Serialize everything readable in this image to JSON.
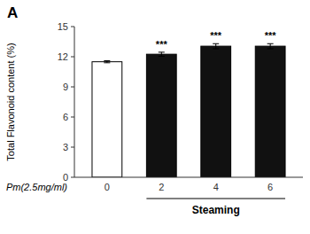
{
  "chart_data": {
    "type": "bar",
    "panel_label": "A",
    "ylabel": "Total Flavonoid content (%)",
    "xlabel": "Steaming",
    "xlabel_sub": "Pm(2.5mg/ml)",
    "categories": [
      "0",
      "2",
      "4",
      "6"
    ],
    "values": [
      11.5,
      12.25,
      13.05,
      13.05
    ],
    "errors": [
      0.1,
      0.2,
      0.25,
      0.25
    ],
    "colors": [
      "#ffffff",
      "#111111",
      "#111111",
      "#111111"
    ],
    "significance": [
      null,
      "***",
      "***",
      "***"
    ],
    "ylim": [
      0,
      15
    ],
    "yticks": [
      0,
      3,
      6,
      9,
      12,
      15
    ],
    "grid": false
  }
}
